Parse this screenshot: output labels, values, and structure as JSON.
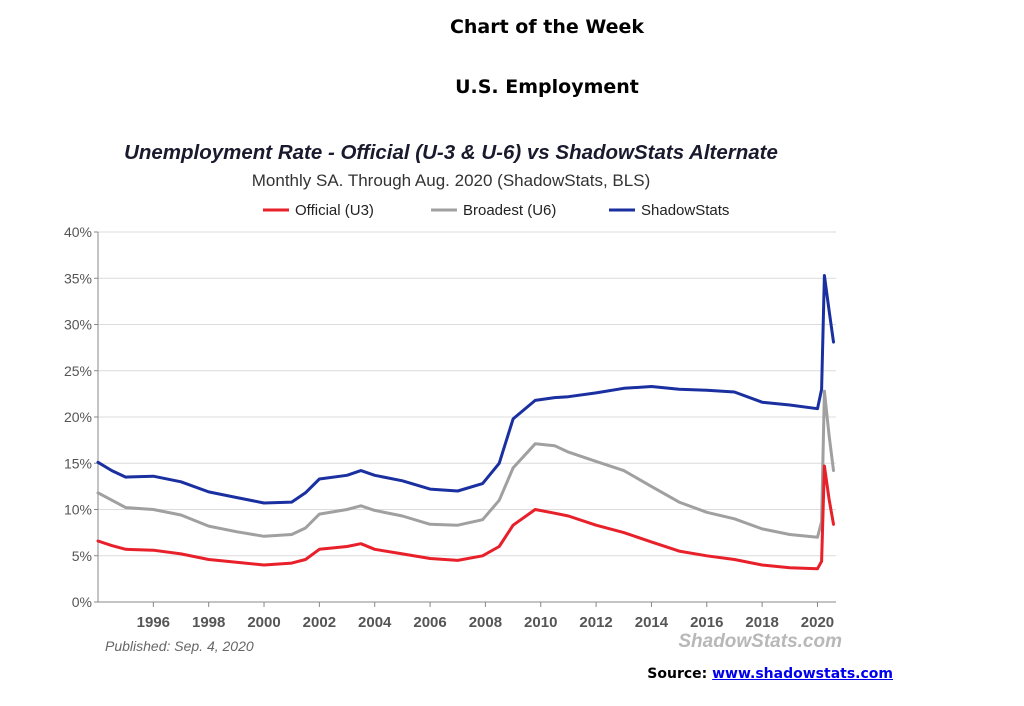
{
  "header": {
    "title": "Chart of the Week",
    "subtitle": "U.S. Employment"
  },
  "source": {
    "label": "Source:",
    "link_text": "www.shadowstats.com"
  },
  "chart_data": {
    "type": "line",
    "title": "Unemployment Rate - Official (U-3 & U-6) vs ShadowStats Alternate",
    "subtitle": "Monthly SA. Through Aug. 2020  (ShadowStats, BLS)",
    "published": "Published: Sep. 4, 2020",
    "watermark": "ShadowStats.com",
    "legend_position": "top-center",
    "grid": true,
    "xlim": [
      1994,
      2020.67
    ],
    "ylim": [
      0,
      40
    ],
    "yticks": [
      "0%",
      "5%",
      "10%",
      "15%",
      "20%",
      "25%",
      "30%",
      "35%",
      "40%"
    ],
    "xticks": [
      "1996",
      "1998",
      "2000",
      "2002",
      "2004",
      "2006",
      "2008",
      "2010",
      "2012",
      "2014",
      "2016",
      "2018",
      "2020"
    ],
    "series": [
      {
        "name": "Official (U3)",
        "color": "#e8202a",
        "points": [
          [
            1994,
            6.6
          ],
          [
            1994.5,
            6.1
          ],
          [
            1995,
            5.7
          ],
          [
            1996,
            5.6
          ],
          [
            1997,
            5.2
          ],
          [
            1998,
            4.6
          ],
          [
            1999,
            4.3
          ],
          [
            2000,
            4.0
          ],
          [
            2001,
            4.2
          ],
          [
            2001.5,
            4.6
          ],
          [
            2002,
            5.7
          ],
          [
            2003,
            6.0
          ],
          [
            2003.5,
            6.3
          ],
          [
            2004,
            5.7
          ],
          [
            2005,
            5.2
          ],
          [
            2006,
            4.7
          ],
          [
            2007,
            4.5
          ],
          [
            2007.9,
            5.0
          ],
          [
            2008.5,
            6.0
          ],
          [
            2009,
            8.3
          ],
          [
            2009.8,
            10.0
          ],
          [
            2010.5,
            9.6
          ],
          [
            2011,
            9.3
          ],
          [
            2012,
            8.3
          ],
          [
            2013,
            7.5
          ],
          [
            2014,
            6.5
          ],
          [
            2015,
            5.5
          ],
          [
            2016,
            5.0
          ],
          [
            2017,
            4.6
          ],
          [
            2018,
            4.0
          ],
          [
            2019,
            3.7
          ],
          [
            2020,
            3.6
          ],
          [
            2020.15,
            4.4
          ],
          [
            2020.25,
            14.7
          ],
          [
            2020.42,
            11.1
          ],
          [
            2020.58,
            8.4
          ]
        ]
      },
      {
        "name": "Broadest (U6)",
        "color": "#a0a0a0",
        "points": [
          [
            1994,
            11.8
          ],
          [
            1995,
            10.2
          ],
          [
            1996,
            10.0
          ],
          [
            1997,
            9.4
          ],
          [
            1998,
            8.2
          ],
          [
            1999,
            7.6
          ],
          [
            2000,
            7.1
          ],
          [
            2001,
            7.3
          ],
          [
            2001.5,
            8.0
          ],
          [
            2002,
            9.5
          ],
          [
            2003,
            10.0
          ],
          [
            2003.5,
            10.4
          ],
          [
            2004,
            9.9
          ],
          [
            2005,
            9.3
          ],
          [
            2006,
            8.4
          ],
          [
            2007,
            8.3
          ],
          [
            2007.9,
            8.9
          ],
          [
            2008.5,
            11.0
          ],
          [
            2009,
            14.5
          ],
          [
            2009.8,
            17.1
          ],
          [
            2010.5,
            16.9
          ],
          [
            2011,
            16.2
          ],
          [
            2012,
            15.2
          ],
          [
            2013,
            14.2
          ],
          [
            2014,
            12.5
          ],
          [
            2015,
            10.8
          ],
          [
            2016,
            9.7
          ],
          [
            2017,
            9.0
          ],
          [
            2018,
            7.9
          ],
          [
            2019,
            7.3
          ],
          [
            2020,
            7.0
          ],
          [
            2020.15,
            8.7
          ],
          [
            2020.25,
            22.8
          ],
          [
            2020.42,
            18.0
          ],
          [
            2020.58,
            14.2
          ]
        ]
      },
      {
        "name": "ShadowStats",
        "color": "#1a2fa0",
        "points": [
          [
            1994,
            15.1
          ],
          [
            1994.5,
            14.2
          ],
          [
            1995,
            13.5
          ],
          [
            1996,
            13.6
          ],
          [
            1997,
            13.0
          ],
          [
            1998,
            11.9
          ],
          [
            1999,
            11.3
          ],
          [
            2000,
            10.7
          ],
          [
            2001,
            10.8
          ],
          [
            2001.5,
            11.8
          ],
          [
            2002,
            13.3
          ],
          [
            2003,
            13.7
          ],
          [
            2003.5,
            14.2
          ],
          [
            2004,
            13.7
          ],
          [
            2005,
            13.1
          ],
          [
            2006,
            12.2
          ],
          [
            2007,
            12.0
          ],
          [
            2007.9,
            12.8
          ],
          [
            2008.5,
            15.0
          ],
          [
            2009,
            19.8
          ],
          [
            2009.8,
            21.8
          ],
          [
            2010.5,
            22.1
          ],
          [
            2011,
            22.2
          ],
          [
            2012,
            22.6
          ],
          [
            2013,
            23.1
          ],
          [
            2014,
            23.3
          ],
          [
            2015,
            23.0
          ],
          [
            2016,
            22.9
          ],
          [
            2017,
            22.7
          ],
          [
            2018,
            21.6
          ],
          [
            2019,
            21.3
          ],
          [
            2020,
            20.9
          ],
          [
            2020.15,
            23.0
          ],
          [
            2020.25,
            35.3
          ],
          [
            2020.42,
            31.5
          ],
          [
            2020.58,
            28.1
          ]
        ]
      }
    ]
  }
}
